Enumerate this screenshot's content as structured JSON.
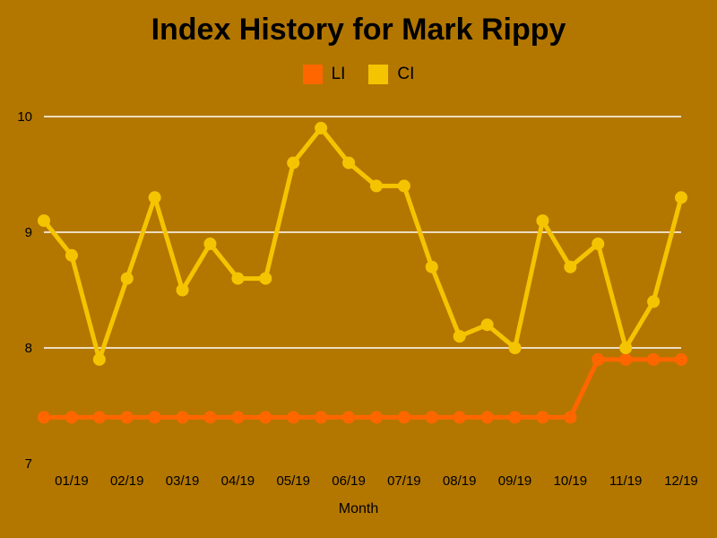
{
  "chart_data": {
    "type": "line",
    "title": "Index History for Mark Rippy",
    "xlabel": "Month",
    "ylabel": "",
    "ylim": [
      7,
      10
    ],
    "yticks": [
      "7",
      "8",
      "9",
      "10"
    ],
    "xticks": [
      "01/19",
      "02/19",
      "03/19",
      "04/19",
      "05/19",
      "06/19",
      "07/19",
      "08/19",
      "09/19",
      "10/19",
      "11/19",
      "12/19"
    ],
    "grid": true,
    "legend_position": "top",
    "series": [
      {
        "name": "LI",
        "color": "#ff6600",
        "values": [
          7.4,
          7.4,
          7.4,
          7.4,
          7.4,
          7.4,
          7.4,
          7.4,
          7.4,
          7.4,
          7.4,
          7.4,
          7.4,
          7.4,
          7.4,
          7.4,
          7.4,
          7.4,
          7.4,
          7.4,
          7.9,
          7.9,
          7.9,
          7.9
        ]
      },
      {
        "name": "CI",
        "color": "#f5c400",
        "values": [
          9.1,
          8.8,
          7.9,
          8.6,
          9.3,
          8.5,
          8.9,
          8.6,
          8.6,
          9.6,
          9.9,
          9.6,
          9.4,
          9.4,
          8.7,
          8.1,
          8.2,
          8.0,
          9.1,
          8.7,
          8.9,
          8.0,
          8.4,
          9.3
        ]
      }
    ]
  }
}
